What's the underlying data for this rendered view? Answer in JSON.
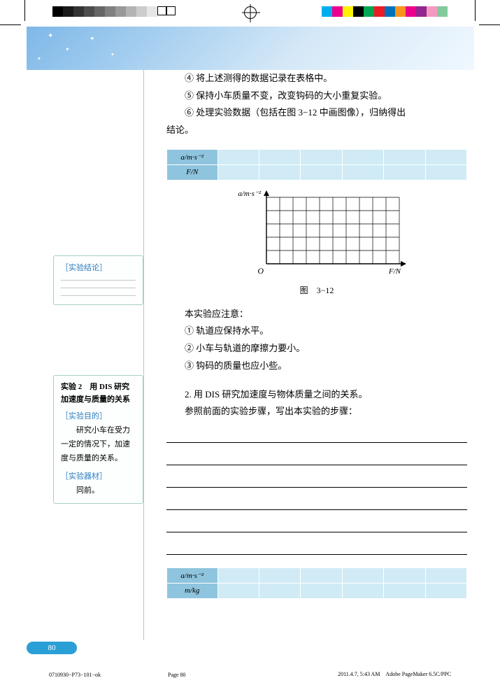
{
  "colorbar_gray": [
    "#000000",
    "#1a1a1a",
    "#333333",
    "#4d4d4d",
    "#666666",
    "#808080",
    "#999999",
    "#b3b3b3",
    "#cccccc",
    "#e6e6e6"
  ],
  "colorbar_color": [
    "#00aeef",
    "#ec008c",
    "#fff200",
    "#000000",
    "#00a651",
    "#ed1c24",
    "#0072bc",
    "#f7941d",
    "#ec008c",
    "#92278f",
    "#f49ac1",
    "#82ca9c"
  ],
  "steps": {
    "s4": "④ 将上述测得的数据记录在表格中。",
    "s5": "⑤ 保持小车质量不变，改变钩码的大小重复实验。",
    "s6": "⑥ 处理实验数据（包括在图 3−12 中画图像），归纳得出",
    "s6b": "结论。"
  },
  "table1": {
    "row1_label": "a/m·s⁻²",
    "row2_label": "F/N"
  },
  "grid": {
    "y_label": "a/m·s⁻²",
    "x_label": "F/N",
    "origin": "O",
    "caption": "图　3−12",
    "cols": 10,
    "rows": 5,
    "cell": 19,
    "axis_color": "#000000"
  },
  "notes": {
    "title": "本实验应注意：",
    "n1": "① 轨道应保持水平。",
    "n2": "② 小车与轨道的摩擦力要小。",
    "n3": "③ 钩码的质量也应小些。"
  },
  "section2": {
    "title": "2. 用 DIS 研究加速度与物体质量之间的关系。",
    "sub": "参照前面的实验步骤，写出本实验的步骤："
  },
  "table2": {
    "row1_label": "a/m·s⁻²",
    "row2_label": "m/kg"
  },
  "sidebar_box1": {
    "heading": "［实验结论］"
  },
  "sidebar_box2": {
    "title1": "实验 2　用 DIS 研究",
    "title2": "加速度与质量的关系",
    "h1": "［实验目的］",
    "p1": "研究小车在受力一定的情况下，加速度与质量的关系。",
    "h2": "［实验器材］",
    "p2": "同前。"
  },
  "page_number": "80",
  "footer": {
    "left": "0710930−P73−101−ok",
    "mid": "Page 80",
    "right": "2011.4.7, 5:43 AM　Adobe PageMaker  6.5C/PPC"
  }
}
